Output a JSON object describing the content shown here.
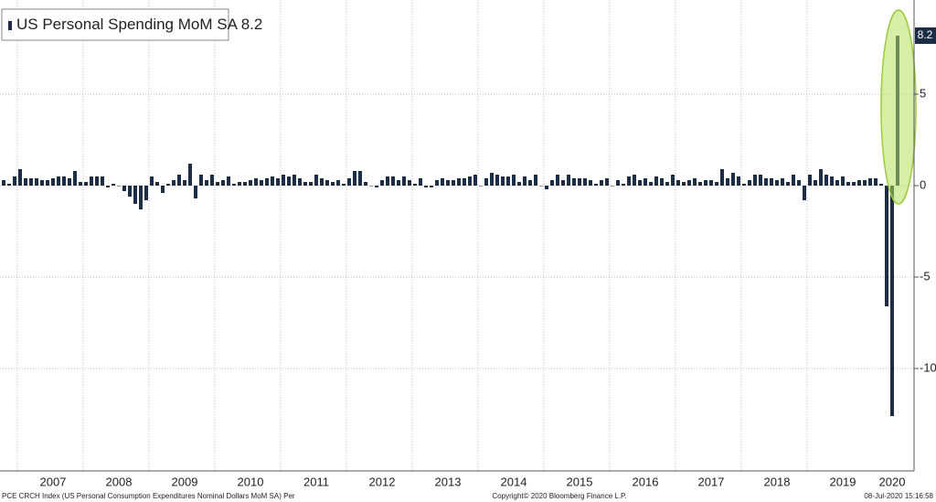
{
  "chart_data": {
    "type": "bar",
    "series": [
      {
        "name": "US Personal Spending MoM SA",
        "color": "#1c2e45",
        "values": [
          0.3,
          0.1,
          0.5,
          0.9,
          0.4,
          0.4,
          0.4,
          0.3,
          0.3,
          0.4,
          0.5,
          0.5,
          0.4,
          0.8,
          0.2,
          0.2,
          0.5,
          0.5,
          0.5,
          -0.1,
          0.1,
          0.0,
          -0.3,
          -0.6,
          -1.0,
          -1.3,
          -0.8,
          0.5,
          0.2,
          -0.4,
          0.1,
          0.3,
          0.6,
          0.3,
          1.2,
          -0.7,
          0.6,
          0.3,
          0.6,
          0.2,
          0.3,
          0.5,
          0.1,
          0.2,
          0.2,
          0.3,
          0.4,
          0.3,
          0.4,
          0.5,
          0.4,
          0.6,
          0.5,
          0.6,
          0.4,
          0.2,
          0.2,
          0.6,
          0.4,
          0.3,
          0.2,
          0.3,
          0.1,
          0.4,
          0.8,
          0.8,
          0.2,
          0.0,
          -0.1,
          0.3,
          0.5,
          0.5,
          0.3,
          0.5,
          0.3,
          0.1,
          0.4,
          -0.1,
          -0.1,
          0.3,
          0.4,
          0.3,
          0.3,
          0.4,
          0.4,
          0.5,
          0.6,
          0.0,
          0.4,
          0.7,
          0.6,
          0.5,
          0.5,
          0.6,
          0.2,
          0.5,
          0.3,
          0.6,
          0.0,
          -0.2,
          0.3,
          0.6,
          0.3,
          0.6,
          0.4,
          0.4,
          0.4,
          0.3,
          0.1,
          0.3,
          0.4,
          0.0,
          0.3,
          0.1,
          0.5,
          0.6,
          0.3,
          0.4,
          0.2,
          0.5,
          0.4,
          0.2,
          0.6,
          0.3,
          0.2,
          0.3,
          0.4,
          0.2,
          0.3,
          0.3,
          0.2,
          0.9,
          0.4,
          0.7,
          0.5,
          0.1,
          0.3,
          0.6,
          0.6,
          0.4,
          0.4,
          0.3,
          0.4,
          0.2,
          0.6,
          0.3,
          -0.8,
          0.6,
          0.3,
          0.9,
          0.6,
          0.5,
          0.3,
          0.5,
          0.2,
          0.2,
          0.3,
          0.3,
          0.4,
          0.4,
          0.1,
          -6.6,
          -12.6,
          8.2
        ]
      }
    ],
    "categories": [
      null,
      null,
      null,
      null,
      null,
      null,
      null,
      null,
      null,
      "2007",
      null,
      null,
      null,
      null,
      null,
      null,
      null,
      null,
      null,
      null,
      null,
      "2008",
      null,
      null,
      null,
      null,
      null,
      null,
      null,
      null,
      null,
      null,
      null,
      "2009",
      null,
      null,
      null,
      null,
      null,
      null,
      null,
      null,
      null,
      null,
      null,
      "2010",
      null,
      null,
      null,
      null,
      null,
      null,
      null,
      null,
      null,
      null,
      null,
      "2011",
      null,
      null,
      null,
      null,
      null,
      null,
      null,
      null,
      null,
      null,
      null,
      "2012",
      null,
      null,
      null,
      null,
      null,
      null,
      null,
      null,
      null,
      null,
      null,
      "2013",
      null,
      null,
      null,
      null,
      null,
      null,
      null,
      null,
      null,
      null,
      null,
      "2014",
      null,
      null,
      null,
      null,
      null,
      null,
      null,
      null,
      null,
      null,
      null,
      "2015",
      null,
      null,
      null,
      null,
      null,
      null,
      null,
      null,
      null,
      null,
      null,
      "2016",
      null,
      null,
      null,
      null,
      null,
      null,
      null,
      null,
      null,
      null,
      null,
      "2017",
      null,
      null,
      null,
      null,
      null,
      null,
      null,
      null,
      null,
      null,
      null,
      "2018",
      null,
      null,
      null,
      null,
      null,
      null,
      null,
      null,
      null,
      null,
      null,
      "2019",
      null,
      null,
      null,
      null,
      null,
      null,
      null,
      null,
      "2020",
      null
    ],
    "ylim": [
      -15.6,
      10.15
    ],
    "yticks": [
      -10,
      -5,
      0,
      5
    ],
    "grid": true,
    "source": "PCE CRCH Index (US Personal Consumption Expenditures Nominal Dollars MoM SA) Per",
    "copyright": "Copyright© 2020 Bloomberg Finance L.P.",
    "timestamp": "08-Jul-2020 15:16:58"
  }
}
